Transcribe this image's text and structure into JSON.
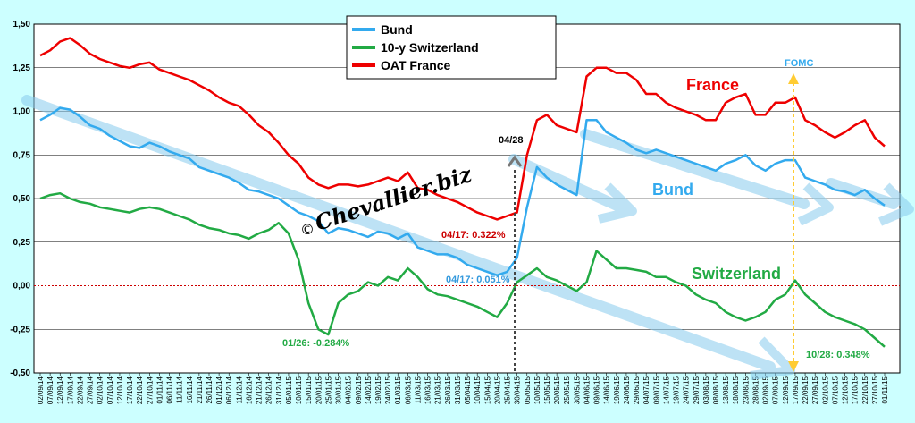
{
  "chart_data": {
    "type": "line",
    "yticks": [
      "1,50",
      "1,25",
      "1,00",
      "0,75",
      "0,50",
      "0,25",
      "0,00",
      "-0,25",
      "-0,50"
    ],
    "ylim": [
      -0.5,
      1.5
    ],
    "grid": true,
    "legend_placement": "top-center",
    "x": [
      "02/09/14",
      "07/09/14",
      "12/09/14",
      "17/09/14",
      "22/09/14",
      "27/09/14",
      "02/10/14",
      "07/10/14",
      "12/10/14",
      "17/10/14",
      "22/10/14",
      "27/10/14",
      "01/11/14",
      "06/11/14",
      "11/11/14",
      "16/11/14",
      "21/11/14",
      "26/11/14",
      "01/12/14",
      "06/12/14",
      "11/12/14",
      "16/12/14",
      "21/12/14",
      "26/12/14",
      "31/12/14",
      "05/01/15",
      "10/01/15",
      "15/01/15",
      "20/01/15",
      "25/01/15",
      "30/01/15",
      "04/02/15",
      "09/02/15",
      "14/02/15",
      "19/02/15",
      "24/02/15",
      "01/03/15",
      "06/03/15",
      "11/03/15",
      "16/03/15",
      "21/03/15",
      "26/03/15",
      "31/03/15",
      "05/04/15",
      "10/04/15",
      "15/04/15",
      "20/04/15",
      "25/04/15",
      "30/04/15",
      "05/05/15",
      "10/05/15",
      "15/05/15",
      "20/05/15",
      "25/05/15",
      "30/05/15",
      "04/06/15",
      "09/06/15",
      "14/06/15",
      "19/06/15",
      "24/06/15",
      "29/06/15",
      "04/07/15",
      "09/07/15",
      "14/07/15",
      "19/07/15",
      "24/07/15",
      "29/07/15",
      "03/08/15",
      "08/08/15",
      "13/08/15",
      "18/08/15",
      "23/08/15",
      "28/08/15",
      "02/09/15",
      "07/09/15",
      "12/09/15",
      "17/09/15",
      "22/09/15",
      "27/09/15",
      "02/10/15",
      "07/10/15",
      "12/10/15",
      "17/10/15",
      "22/10/15",
      "27/10/15",
      "01/11/15"
    ],
    "series": [
      {
        "name": "Bund",
        "color": "#33aaee",
        "values": [
          0.95,
          0.98,
          1.02,
          1.01,
          0.97,
          0.92,
          0.9,
          0.86,
          0.83,
          0.8,
          0.79,
          0.82,
          0.8,
          0.77,
          0.75,
          0.73,
          0.68,
          0.66,
          0.64,
          0.62,
          0.59,
          0.55,
          0.54,
          0.52,
          0.5,
          0.46,
          0.42,
          0.4,
          0.37,
          0.3,
          0.33,
          0.32,
          0.3,
          0.28,
          0.31,
          0.3,
          0.27,
          0.3,
          0.22,
          0.2,
          0.18,
          0.18,
          0.16,
          0.12,
          0.1,
          0.08,
          0.06,
          0.08,
          0.16,
          0.45,
          0.68,
          0.62,
          0.58,
          0.55,
          0.52,
          0.95,
          0.95,
          0.88,
          0.85,
          0.82,
          0.78,
          0.76,
          0.78,
          0.76,
          0.74,
          0.72,
          0.7,
          0.68,
          0.66,
          0.7,
          0.72,
          0.75,
          0.69,
          0.66,
          0.7,
          0.72,
          0.72,
          0.62,
          0.6,
          0.58,
          0.55,
          0.54,
          0.52,
          0.55,
          0.5,
          0.46
        ]
      },
      {
        "name": "10-y Switzerland",
        "color": "#22aa44",
        "values": [
          0.5,
          0.52,
          0.53,
          0.5,
          0.48,
          0.47,
          0.45,
          0.44,
          0.43,
          0.42,
          0.44,
          0.45,
          0.44,
          0.42,
          0.4,
          0.38,
          0.35,
          0.33,
          0.32,
          0.3,
          0.29,
          0.27,
          0.3,
          0.32,
          0.36,
          0.3,
          0.15,
          -0.1,
          -0.25,
          -0.28,
          -0.1,
          -0.05,
          -0.03,
          0.02,
          0.0,
          0.05,
          0.03,
          0.1,
          0.05,
          -0.02,
          -0.05,
          -0.06,
          -0.08,
          -0.1,
          -0.12,
          -0.15,
          -0.18,
          -0.1,
          0.02,
          0.06,
          0.1,
          0.05,
          0.03,
          0.0,
          -0.03,
          0.02,
          0.2,
          0.15,
          0.1,
          0.1,
          0.09,
          0.08,
          0.05,
          0.05,
          0.02,
          0.0,
          -0.05,
          -0.08,
          -0.1,
          -0.15,
          -0.18,
          -0.2,
          -0.18,
          -0.15,
          -0.08,
          -0.05,
          0.03,
          -0.05,
          -0.1,
          -0.15,
          -0.18,
          -0.2,
          -0.22,
          -0.25,
          -0.3,
          -0.35
        ]
      },
      {
        "name": "OAT France",
        "color": "#ee0000",
        "values": [
          1.32,
          1.35,
          1.4,
          1.42,
          1.38,
          1.33,
          1.3,
          1.28,
          1.26,
          1.25,
          1.27,
          1.28,
          1.24,
          1.22,
          1.2,
          1.18,
          1.15,
          1.12,
          1.08,
          1.05,
          1.03,
          0.98,
          0.92,
          0.88,
          0.82,
          0.75,
          0.7,
          0.62,
          0.58,
          0.56,
          0.58,
          0.58,
          0.57,
          0.58,
          0.6,
          0.62,
          0.6,
          0.65,
          0.56,
          0.55,
          0.52,
          0.5,
          0.48,
          0.45,
          0.42,
          0.4,
          0.38,
          0.4,
          0.42,
          0.75,
          0.95,
          0.98,
          0.92,
          0.9,
          0.88,
          1.2,
          1.25,
          1.25,
          1.22,
          1.22,
          1.18,
          1.1,
          1.1,
          1.05,
          1.02,
          1.0,
          0.98,
          0.95,
          0.95,
          1.05,
          1.08,
          1.1,
          0.98,
          0.98,
          1.05,
          1.05,
          1.08,
          0.95,
          0.92,
          0.88,
          0.85,
          0.88,
          0.92,
          0.95,
          0.85,
          0.8
        ]
      }
    ],
    "legend": [
      "Bund",
      "10-y Switzerland",
      "OAT France"
    ],
    "annotations": {
      "france_label": "France",
      "bund_label": "Bund",
      "switzerland_label": "Switzerland",
      "fomc": "FOMC",
      "date_0428": "04/28",
      "oat_0417": "04/17: 0.322%",
      "bund_0417": "04/17:  0.051%",
      "swiss_0126": "01/26:  -0.284%",
      "swiss_1028": "10/28: 0.348%"
    },
    "watermark": "Chevallier.biz",
    "copyright": "©"
  }
}
